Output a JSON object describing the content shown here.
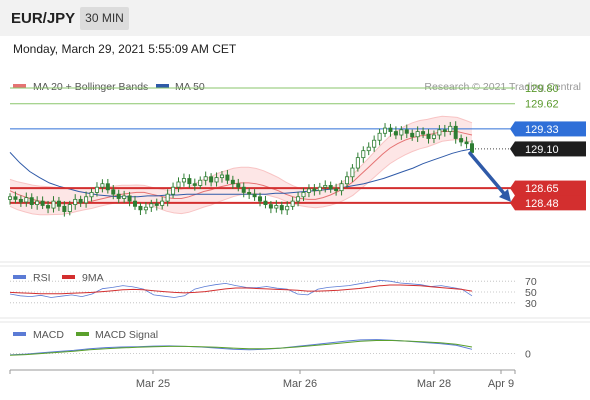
{
  "header": {
    "symbol": "EUR/JPY",
    "timeframe": "30 MIN",
    "datetime": "Monday, March 29, 2021 5:55:09 AM CET"
  },
  "colors": {
    "candle": "#2e7d32",
    "ma20": "#e57373",
    "bollinger_fill": "#fde3e3",
    "ma50": "#2f5aa8",
    "resistance_green": "#8ac66b",
    "resistance_blue": "#2f6fd8",
    "support_red": "#d32f2f",
    "last_price_badge": "#1e1e1e",
    "arrow": "#2f5aa8",
    "rsi": "#5b7bd5",
    "rsi_ma": "#d32f2f",
    "macd": "#5b7bd5",
    "macd_signal": "#5aa02c"
  },
  "chart_data": [
    {
      "type": "candlestick",
      "legend": [
        "MA 20 + Bollinger Bands",
        "MA 50"
      ],
      "watermark": "Research © 2021 Trading Central",
      "ylim": [
        127.8,
        129.95
      ],
      "price_levels": [
        {
          "value": 129.8,
          "label": "129.80",
          "style": "resistance_green"
        },
        {
          "value": 129.62,
          "label": "129.62",
          "style": "resistance_green"
        },
        {
          "value": 129.33,
          "label": "129.33",
          "style": "resistance_blue"
        },
        {
          "value": 129.1,
          "label": "129.10",
          "style": "last_price"
        },
        {
          "value": 128.65,
          "label": "128.65",
          "style": "support_red"
        },
        {
          "value": 128.48,
          "label": "128.48",
          "style": "support_red"
        }
      ],
      "close": [
        128.55,
        128.52,
        128.49,
        128.54,
        128.46,
        128.5,
        128.45,
        128.42,
        128.5,
        128.44,
        128.38,
        128.46,
        128.52,
        128.48,
        128.55,
        128.6,
        128.66,
        128.7,
        128.63,
        128.58,
        128.53,
        128.56,
        128.5,
        128.44,
        128.4,
        128.43,
        128.47,
        128.45,
        128.5,
        128.58,
        128.66,
        128.72,
        128.76,
        128.7,
        128.68,
        128.74,
        128.78,
        128.72,
        128.77,
        128.8,
        128.74,
        128.7,
        128.66,
        128.6,
        128.58,
        128.55,
        128.5,
        128.46,
        128.42,
        128.45,
        128.4,
        128.44,
        128.5,
        128.55,
        128.6,
        128.64,
        128.62,
        128.66,
        128.68,
        128.64,
        128.62,
        128.7,
        128.78,
        128.88,
        129.0,
        129.08,
        129.12,
        129.2,
        129.28,
        129.34,
        129.3,
        129.26,
        129.32,
        129.28,
        129.24,
        129.3,
        129.27,
        129.22,
        129.26,
        129.32,
        129.3,
        129.36,
        129.22,
        129.18,
        129.16,
        129.06
      ],
      "ma20": [
        128.62,
        128.58,
        128.55,
        128.52,
        128.5,
        128.49,
        128.48,
        128.47,
        128.47,
        128.48,
        128.49,
        128.5,
        128.52,
        128.54,
        128.56,
        128.58,
        128.59,
        128.6,
        128.6,
        128.58,
        128.56,
        128.54,
        128.53,
        128.53,
        128.55,
        128.58,
        128.61,
        128.63,
        128.66,
        128.68,
        128.7,
        128.71,
        128.71,
        128.7,
        128.68,
        128.65,
        128.62,
        128.58,
        128.55,
        128.53,
        128.52,
        128.52,
        128.54,
        128.57,
        128.61,
        128.66,
        128.72,
        128.8,
        128.88,
        128.96,
        129.04,
        129.11,
        129.16,
        129.2,
        129.23,
        129.25,
        129.26,
        129.28,
        129.3,
        129.3,
        129.3,
        129.28,
        129.26
      ],
      "ma50": [
        129.06,
        128.94,
        128.84,
        128.77,
        128.71,
        128.67,
        128.64,
        128.61,
        128.59,
        128.57,
        128.56,
        128.55,
        128.55,
        128.55,
        128.56,
        128.56,
        128.57,
        128.57,
        128.58,
        128.58,
        128.58,
        128.58,
        128.58,
        128.58,
        128.58,
        128.58,
        128.58,
        128.59,
        128.59,
        128.6,
        128.61,
        128.62,
        128.63,
        128.64,
        128.66,
        128.68,
        128.7,
        128.73,
        128.76,
        128.8,
        128.84,
        128.88,
        128.93,
        128.97,
        129.01,
        129.05,
        129.08,
        129.1
      ]
    },
    {
      "type": "line",
      "legend": [
        "RSI",
        "9MA"
      ],
      "levels": [
        {
          "value": 70,
          "label": "70"
        },
        {
          "value": 50,
          "label": "50"
        },
        {
          "value": 30,
          "label": "30"
        }
      ],
      "rsi": [
        50,
        46,
        44,
        47,
        42,
        45,
        48,
        44,
        50,
        53,
        56,
        60,
        57,
        52,
        48,
        45,
        42,
        46,
        52,
        58,
        62,
        65,
        60,
        56,
        55,
        58,
        54,
        52,
        50,
        48,
        52,
        56,
        58,
        60,
        64,
        68,
        72,
        70,
        66,
        64,
        62,
        58,
        60,
        56,
        52,
        46
      ],
      "rsi_ma": [
        49,
        48,
        47,
        46,
        46,
        46,
        47,
        48,
        49,
        51,
        53,
        55,
        56,
        55,
        53,
        51,
        49,
        48,
        49,
        51,
        54,
        57,
        59,
        59,
        58,
        57,
        56,
        55,
        54,
        52,
        52,
        53,
        54,
        56,
        58,
        61,
        64,
        66,
        66,
        65,
        64,
        62,
        60,
        58,
        56,
        52
      ]
    },
    {
      "type": "line",
      "legend": [
        "MACD",
        "MACD Signal"
      ],
      "levels": [
        {
          "value": 0,
          "label": "0"
        }
      ],
      "macd": [
        0.02,
        0.05,
        0.1,
        0.14,
        0.18,
        0.24,
        0.28,
        0.3,
        0.31,
        0.33,
        0.34,
        0.32,
        0.3,
        0.26,
        0.22,
        0.2,
        0.22,
        0.26,
        0.32,
        0.38,
        0.44,
        0.5,
        0.55,
        0.56,
        0.54,
        0.5,
        0.46,
        0.42,
        0.36,
        0.22
      ],
      "macd_signal": [
        0.01,
        0.03,
        0.07,
        0.11,
        0.15,
        0.2,
        0.24,
        0.27,
        0.29,
        0.31,
        0.32,
        0.32,
        0.31,
        0.29,
        0.26,
        0.24,
        0.24,
        0.26,
        0.3,
        0.35,
        0.4,
        0.45,
        0.5,
        0.53,
        0.53,
        0.51,
        0.48,
        0.45,
        0.4,
        0.3
      ],
      "ylim": [
        -0.3,
        0.9
      ]
    }
  ],
  "x_axis": {
    "tick_labels": [
      "Mar 25",
      "Mar 26",
      "Mar 28",
      "Apr 9"
    ]
  }
}
